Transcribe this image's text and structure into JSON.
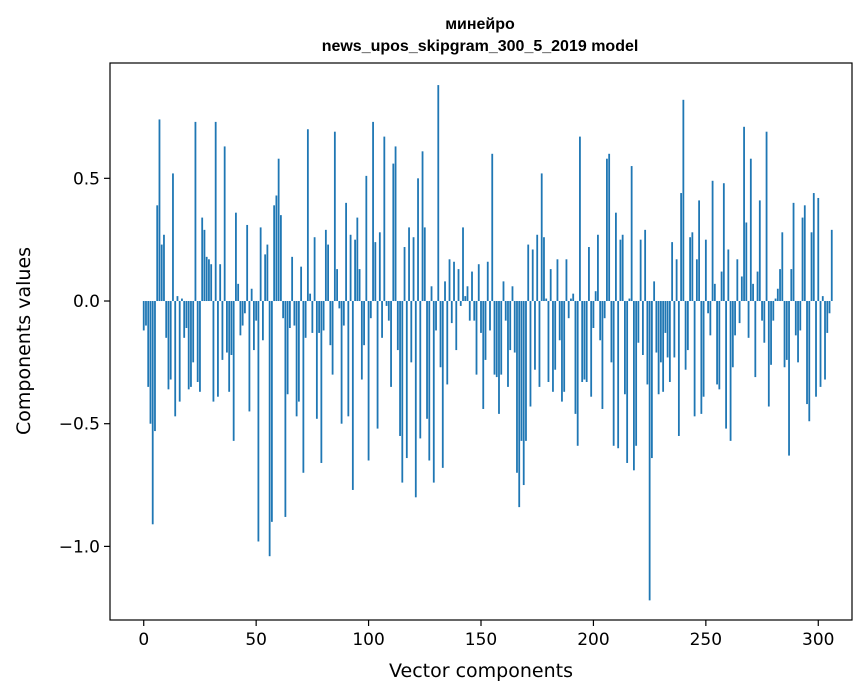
{
  "chart_data": {
    "type": "bar",
    "title_line1": "минейро",
    "title_line2": "news_upos_skipgram_300_5_2019 model",
    "xlabel": "Vector components",
    "ylabel": "Components values",
    "xlim": [
      -15,
      315
    ],
    "ylim": [
      -1.3,
      0.97
    ],
    "xticks": [
      0,
      50,
      100,
      150,
      200,
      250,
      300
    ],
    "xtick_labels": [
      "0",
      "50",
      "100",
      "150",
      "200",
      "250",
      "300"
    ],
    "yticks": [
      -1.0,
      -0.5,
      0.0,
      0.5
    ],
    "ytick_labels": [
      "−1.0",
      "−0.5",
      "0.0",
      "0.5"
    ],
    "bar_color": "#1f77b4",
    "values": [
      -0.12,
      -0.1,
      -0.35,
      -0.5,
      -0.91,
      -0.53,
      0.39,
      0.74,
      0.23,
      0.27,
      -0.15,
      -0.36,
      -0.32,
      0.52,
      -0.47,
      0.02,
      -0.41,
      0.01,
      -0.15,
      -0.11,
      -0.36,
      -0.35,
      -0.25,
      0.73,
      -0.33,
      -0.37,
      0.34,
      0.29,
      0.18,
      0.17,
      0.15,
      -0.41,
      0.73,
      -0.39,
      0.15,
      -0.24,
      0.63,
      -0.21,
      -0.37,
      -0.22,
      -0.57,
      0.36,
      0.07,
      -0.14,
      -0.1,
      -0.05,
      0.31,
      -0.45,
      0.05,
      -0.2,
      -0.08,
      -0.98,
      0.3,
      -0.16,
      0.19,
      0.23,
      -1.04,
      -0.9,
      0.39,
      0.43,
      0.58,
      0.35,
      -0.07,
      -0.88,
      -0.38,
      -0.11,
      0.18,
      -0.1,
      -0.47,
      -0.41,
      0.14,
      -0.7,
      -0.15,
      0.7,
      0.03,
      -0.13,
      0.26,
      -0.48,
      -0.13,
      -0.66,
      -0.12,
      0.29,
      0.23,
      -0.18,
      -0.3,
      0.69,
      0.13,
      -0.03,
      -0.5,
      -0.1,
      0.4,
      -0.47,
      0.27,
      -0.77,
      0.25,
      0.34,
      0.13,
      -0.32,
      -0.18,
      0.51,
      -0.65,
      -0.07,
      0.73,
      0.24,
      -0.52,
      0.28,
      -0.15,
      0.67,
      -0.02,
      -0.08,
      -0.35,
      0.56,
      0.63,
      -0.2,
      -0.55,
      -0.74,
      0.22,
      -0.64,
      0.3,
      -0.25,
      0.26,
      -0.8,
      0.5,
      -0.56,
      0.61,
      0.3,
      -0.48,
      -0.65,
      0.06,
      -0.74,
      -0.12,
      0.88,
      -0.27,
      -0.68,
      0.08,
      -0.34,
      0.17,
      -0.09,
      0.16,
      -0.2,
      0.13,
      -0.02,
      0.3,
      0.02,
      0.06,
      -0.08,
      0.12,
      -0.08,
      -0.3,
      0.15,
      -0.13,
      -0.44,
      -0.24,
      0.16,
      -0.12,
      0.6,
      -0.3,
      -0.31,
      -0.46,
      -0.3,
      0.08,
      -0.08,
      -0.35,
      -0.2,
      0.06,
      -0.21,
      -0.7,
      -0.84,
      -0.57,
      -0.75,
      -0.57,
      0.23,
      -0.43,
      0.21,
      -0.28,
      0.27,
      -0.35,
      0.52,
      0.26,
      0.01,
      -0.33,
      0.13,
      -0.37,
      -0.28,
      0.17,
      -0.16,
      -0.41,
      -0.37,
      0.17,
      -0.07,
      0.01,
      0.03,
      -0.46,
      -0.59,
      0.67,
      -0.33,
      -0.32,
      -0.33,
      0.22,
      -0.39,
      -0.11,
      0.04,
      0.27,
      -0.16,
      -0.44,
      -0.07,
      0.58,
      0.6,
      -0.25,
      -0.59,
      0.36,
      -0.6,
      0.25,
      0.27,
      -0.38,
      -0.66,
      0.01,
      0.55,
      -0.69,
      -0.59,
      -0.17,
      0.25,
      -0.22,
      0.29,
      -0.34,
      -1.22,
      -0.64,
      0.08,
      -0.21,
      -0.38,
      -0.25,
      -0.37,
      -0.13,
      -0.23,
      -0.33,
      0.24,
      -0.23,
      0.17,
      -0.55,
      0.44,
      0.82,
      -0.28,
      -0.2,
      0.26,
      0.28,
      -0.47,
      0.17,
      0.41,
      -0.46,
      -0.39,
      0.25,
      -0.05,
      -0.14,
      0.49,
      0.07,
      -0.34,
      -0.36,
      0.12,
      0.48,
      -0.52,
      0.21,
      -0.57,
      -0.27,
      -0.14,
      0.17,
      -0.09,
      0.1,
      0.71,
      0.32,
      -0.15,
      0.58,
      0.07,
      -0.31,
      0.12,
      0.41,
      -0.08,
      -0.17,
      0.69,
      -0.43,
      -0.26,
      -0.08,
      0.01,
      0.05,
      0.13,
      0.28,
      -0.27,
      -0.24,
      -0.63,
      0.13,
      0.4,
      -0.14,
      -0.25,
      -0.12,
      0.34,
      0.39,
      -0.42,
      -0.49,
      0.28,
      0.44,
      -0.39,
      0.42,
      -0.35,
      0.02,
      -0.32,
      -0.13,
      -0.05,
      0.29
    ]
  }
}
